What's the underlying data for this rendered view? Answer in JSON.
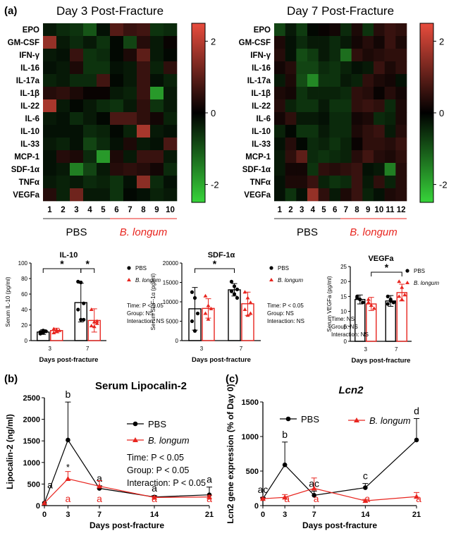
{
  "panel_labels": {
    "a": "(a)",
    "b": "(b)",
    "c": "(c)"
  },
  "heatmap_rows": [
    "EPO",
    "GM-CSF",
    "IFN-γ",
    "IL-16",
    "IL-17a",
    "IL-1β",
    "IL-22",
    "IL-6",
    "IL-10",
    "IL-33",
    "MCP-1",
    "SDF-1α",
    "TNFα",
    "VEGFa"
  ],
  "colorbar_ticks": [
    "2",
    "0",
    "-2"
  ],
  "group_labels": {
    "pbs": "PBS",
    "blongum": "B. longum"
  },
  "colors": {
    "pbs": "#000000",
    "blongum": "#e8251f",
    "heat_pos": "#e84c3d",
    "heat_zero": "#000000",
    "heat_neg": "#37d43a"
  },
  "chart_data": [
    {
      "id": "heat_day3",
      "type": "heatmap",
      "title": "Day 3 Post-Fracture",
      "columns": [
        "1",
        "2",
        "3",
        "4",
        "5",
        "6",
        "7",
        "8",
        "9",
        "10"
      ],
      "rows": [
        "EPO",
        "GM-CSF",
        "IFN-γ",
        "IL-16",
        "IL-17a",
        "IL-1β",
        "IL-22",
        "IL-6",
        "IL-10",
        "IL-33",
        "MCP-1",
        "SDF-1α",
        "TNFα",
        "VEGFa"
      ],
      "values": [
        [
          -0.3,
          -0.5,
          -0.6,
          -1.0,
          -0.2,
          0.9,
          0.6,
          0.7,
          -0.6,
          -0.5
        ],
        [
          1.6,
          -0.3,
          -0.5,
          -0.3,
          -0.6,
          -0.1,
          -0.8,
          0.4,
          -0.3,
          0.1
        ],
        [
          -0.3,
          -0.2,
          0.6,
          -0.6,
          -0.5,
          -0.1,
          0.3,
          1.0,
          -0.3,
          -0.1
        ],
        [
          -0.2,
          -0.3,
          0.3,
          -0.6,
          -0.6,
          -0.2,
          -0.3,
          0.6,
          -0.4,
          0.5
        ],
        [
          -0.4,
          -0.3,
          -0.5,
          -0.5,
          0.7,
          -0.1,
          -0.3,
          0.6,
          -0.2,
          -0.4
        ],
        [
          0.4,
          0.5,
          0.3,
          0.1,
          0.1,
          -0.3,
          -0.4,
          0.6,
          -1.8,
          -0.3
        ],
        [
          1.8,
          -0.3,
          -0.1,
          -0.3,
          -0.5,
          -0.6,
          -0.3,
          0.5,
          -0.6,
          -0.3
        ],
        [
          -0.3,
          -0.2,
          -0.5,
          -0.3,
          -0.1,
          0.8,
          0.8,
          0.5,
          0.2,
          -0.4
        ],
        [
          -0.2,
          -0.2,
          -0.2,
          -0.5,
          -0.4,
          -0.1,
          -0.4,
          1.8,
          -0.3,
          -0.2
        ],
        [
          -0.3,
          -0.4,
          -0.2,
          -0.8,
          -0.5,
          -0.2,
          0.3,
          -0.3,
          -0.2,
          0.8
        ],
        [
          -0.2,
          0.4,
          0.3,
          -0.5,
          -1.8,
          0.3,
          -0.3,
          0.6,
          0.6,
          -0.3
        ],
        [
          -0.2,
          -0.3,
          -1.5,
          -0.8,
          -0.3,
          0.4,
          0.5,
          0.4,
          0.2,
          -0.5
        ],
        [
          -0.3,
          -0.4,
          -0.3,
          -0.5,
          -0.4,
          -0.6,
          -0.2,
          1.5,
          -0.5,
          -0.2
        ],
        [
          0.4,
          -0.4,
          1.2,
          -0.3,
          -0.3,
          -0.6,
          -0.1,
          -0.2,
          -0.4,
          -0.3
        ]
      ],
      "color_range": [
        -2.5,
        2.5
      ]
    },
    {
      "id": "heat_day7",
      "type": "heatmap",
      "title": "Day 7 Post-Fracture",
      "columns": [
        "1",
        "2",
        "3",
        "4",
        "5",
        "6",
        "7",
        "8",
        "9",
        "10",
        "11",
        "12"
      ],
      "rows": [
        "EPO",
        "GM-CSF",
        "IFN-γ",
        "IL-16",
        "IL-17a",
        "IL-1β",
        "IL-22",
        "IL-6",
        "IL-10",
        "IL-33",
        "MCP-1",
        "SDF-1α",
        "TNFα",
        "VEGFa"
      ],
      "values": [
        [
          -0.8,
          -0.3,
          -0.7,
          -0.1,
          0.1,
          0.2,
          -0.5,
          0.3,
          -0.6,
          0.4,
          0.6,
          0.5
        ],
        [
          0.3,
          -0.2,
          -0.5,
          -0.3,
          -0.3,
          -0.5,
          -0.3,
          0.2,
          0.4,
          0.2,
          0.6,
          0.3
        ],
        [
          0.4,
          -0.2,
          -0.9,
          -0.7,
          -0.3,
          -0.5,
          -1.3,
          0.5,
          0.3,
          0.4,
          0.5,
          0.5
        ],
        [
          0.2,
          0.4,
          -0.8,
          -0.8,
          -0.5,
          -0.6,
          -0.4,
          -0.2,
          -0.3,
          0.6,
          0.3,
          0.5
        ],
        [
          -0.3,
          0.3,
          -0.9,
          -1.6,
          -0.6,
          -0.6,
          -0.3,
          -0.4,
          0.5,
          0.3,
          0.2,
          -0.2
        ],
        [
          0.3,
          0.2,
          -0.6,
          -0.4,
          -0.4,
          -0.4,
          -0.5,
          0.5,
          0.4,
          0.1,
          0.4,
          0.2
        ],
        [
          0.4,
          -0.4,
          -0.6,
          -0.6,
          -0.3,
          -0.6,
          -0.6,
          0.5,
          0.6,
          0.5,
          -0.5,
          0.3
        ],
        [
          0.2,
          0.5,
          -0.3,
          -0.3,
          -0.2,
          -0.5,
          -0.5,
          0.2,
          0.3,
          -0.5,
          -0.4,
          0.3
        ],
        [
          -0.4,
          -0.1,
          -0.6,
          -0.6,
          -0.3,
          -0.5,
          -0.5,
          0.3,
          0.5,
          0.6,
          -0.3,
          0.4
        ],
        [
          -0.2,
          0.4,
          -0.1,
          -0.5,
          -0.4,
          -0.6,
          -0.4,
          0.1,
          0.5,
          0.5,
          0.4,
          0.6
        ],
        [
          -0.3,
          0.5,
          1.0,
          -0.5,
          -0.6,
          -0.5,
          -0.4,
          0.4,
          0.7,
          0.4,
          0.3,
          0.5
        ],
        [
          -0.3,
          0.2,
          0.2,
          -0.6,
          0.5,
          0.4,
          0.5,
          0.6,
          -0.2,
          -0.3,
          -1.5,
          0.4
        ],
        [
          -0.2,
          0.3,
          0.3,
          0.6,
          -0.4,
          -0.6,
          -0.5,
          0.6,
          -0.3,
          0.5,
          -0.4,
          0.4
        ],
        [
          -0.2,
          -0.6,
          -0.2,
          1.6,
          0.5,
          -0.3,
          0.3,
          0.6,
          -0.4,
          -0.2,
          0.3,
          0.4
        ]
      ],
      "color_range": [
        -2.5,
        2.5
      ]
    },
    {
      "id": "il10",
      "type": "bar",
      "title": "IL-10",
      "ylabel": "Serum IL-10 (pg/ml)",
      "xlabel": "Days post-fracture",
      "ylim": [
        0,
        100
      ],
      "yticks": [
        "0",
        "20",
        "40",
        "60",
        "80",
        "100"
      ],
      "categories": [
        "3",
        "7"
      ],
      "series": [
        {
          "name": "PBS",
          "values": [
            11,
            49
          ],
          "err": [
            3,
            25
          ]
        },
        {
          "name": "B. longum",
          "values": [
            13,
            26
          ],
          "err": [
            3,
            15
          ]
        }
      ],
      "points": [
        [
          [
            9,
            10,
            12,
            11,
            13
          ],
          [
            76,
            75,
            48,
            40,
            27,
            27
          ]
        ],
        [
          [
            10,
            14,
            13,
            15,
            12
          ],
          [
            40,
            24,
            22,
            19,
            18,
            25
          ]
        ]
      ],
      "sig_brackets": [
        {
          "from": [
            0,
            0
          ],
          "to": [
            1,
            0
          ],
          "label": "*"
        },
        {
          "from": [
            1,
            0
          ],
          "to": [
            1,
            1
          ],
          "label": "*"
        }
      ],
      "stats": [
        "Time: P < 0.05",
        "Group: NS",
        "Interaction: NS"
      ]
    },
    {
      "id": "sdf1a",
      "type": "bar",
      "title": "SDF-1α",
      "ylabel": "Serum SDF-1α (pg/ml)",
      "xlabel": "Days post-fracture",
      "ylim": [
        0,
        20000
      ],
      "yticks": [
        "0",
        "5000",
        "10000",
        "15000",
        "20000"
      ],
      "categories": [
        "3",
        "7"
      ],
      "series": [
        {
          "name": "PBS",
          "values": [
            8200,
            13100
          ],
          "err": [
            5500,
            1600
          ]
        },
        {
          "name": "B. longum",
          "values": [
            8300,
            9500
          ],
          "err": [
            2500,
            3000
          ]
        }
      ],
      "points": [
        [
          [
            12500,
            11000,
            7000,
            5000,
            2500
          ],
          [
            15200,
            14000,
            13200,
            12700,
            12000,
            11000
          ]
        ],
        [
          [
            11500,
            9000,
            8200,
            7000,
            5500
          ],
          [
            12500,
            11000,
            9800,
            8000,
            6500,
            7000
          ]
        ]
      ],
      "sig_brackets": [
        {
          "from": [
            0,
            0
          ],
          "to": [
            1,
            0
          ],
          "label": "*"
        }
      ],
      "stats": [
        "Time: P < 0.05",
        "Group: NS",
        "Interaction: NS"
      ]
    },
    {
      "id": "vegfa",
      "type": "bar",
      "title": "VEGFa",
      "ylabel": "Serum VEGFa (pg/ml)",
      "xlabel": "Days post-fracture",
      "ylim": [
        0,
        25
      ],
      "yticks": [
        "0",
        "5",
        "10",
        "15",
        "20",
        "25"
      ],
      "categories": [
        "3",
        "7"
      ],
      "series": [
        {
          "name": "PBS",
          "values": [
            14,
            13.5
          ],
          "err": [
            1.5,
            1.8
          ]
        },
        {
          "name": "B. longum",
          "values": [
            12.5,
            16.3
          ],
          "err": [
            2.2,
            2.8
          ]
        }
      ],
      "points": [
        [
          [
            15,
            14,
            13,
            14.5
          ],
          [
            15,
            14,
            13,
            12.5,
            13.5
          ]
        ],
        [
          [
            14,
            12,
            11,
            13
          ],
          [
            20,
            18,
            15.5,
            15,
            14
          ]
        ]
      ],
      "sig_brackets": [
        {
          "from": [
            0,
            1
          ],
          "to": [
            1,
            1
          ],
          "label": "*"
        }
      ],
      "stats": [
        "Time: NS",
        "Group: NS",
        "Interaction: NS"
      ]
    },
    {
      "id": "lipocalin",
      "type": "line",
      "title": "Serum Lipocalin-2",
      "ylabel": "Lipocalin-2 (ng/ml)",
      "xlabel": "Days post-fracture",
      "x": [
        0,
        3,
        7,
        14,
        21
      ],
      "xticks": [
        "0",
        "3",
        "7",
        "14",
        "21"
      ],
      "ylim": [
        0,
        2500
      ],
      "yticks": [
        "0",
        "500",
        "1000",
        "1500",
        "2000",
        "2500"
      ],
      "series": [
        {
          "name": "PBS",
          "values": [
            60,
            1520,
            400,
            200,
            250
          ],
          "err": [
            0,
            880,
            60,
            30,
            180
          ],
          "letters": [
            "",
            "b",
            "a",
            "a",
            "a"
          ]
        },
        {
          "name": "B. longum",
          "values": [
            60,
            620,
            450,
            190,
            200
          ],
          "err": [
            0,
            170,
            130,
            20,
            40
          ],
          "letters": [
            "",
            "a",
            "a",
            "a",
            "a"
          ]
        }
      ],
      "extra_letters": [
        {
          "x": 0,
          "y": 400,
          "text": "a"
        }
      ],
      "stars": [
        {
          "x": 3,
          "y": 820,
          "text": "*"
        }
      ],
      "legend": "top-right",
      "stats": [
        "Time: P < 0.05",
        "Group: P < 0.05",
        "Interaction: P < 0.05"
      ]
    },
    {
      "id": "lcn2",
      "type": "line",
      "title": "Lcn2",
      "ylabel": "Lcn2 gene expression (% of Day 0)",
      "xlabel": "Days post-fracture",
      "x": [
        0,
        3,
        7,
        14,
        21
      ],
      "xticks": [
        "0",
        "3",
        "7",
        "14",
        "21"
      ],
      "ylim": [
        0,
        1500
      ],
      "yticks": [
        "0",
        "500",
        "1000",
        "1500"
      ],
      "series": [
        {
          "name": "PBS",
          "values": [
            100,
            590,
            150,
            260,
            950
          ],
          "err": [
            20,
            330,
            60,
            60,
            310
          ],
          "letters": [
            "ac",
            "b",
            "ac",
            "c",
            "d"
          ]
        },
        {
          "name": "B. longum",
          "values": [
            100,
            120,
            250,
            70,
            130
          ],
          "err": [
            10,
            40,
            150,
            20,
            60
          ],
          "letters": [
            "",
            "a",
            "a",
            "a",
            "a"
          ]
        }
      ],
      "legend": "top"
    }
  ]
}
